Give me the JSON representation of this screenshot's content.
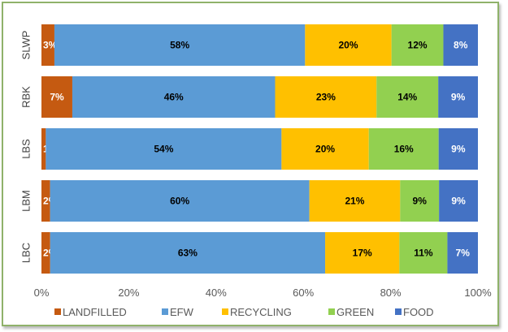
{
  "chart_data": {
    "type": "bar",
    "orientation": "horizontal",
    "stacked": true,
    "percent": true,
    "categories": [
      "SLWP",
      "RBK",
      "LBS",
      "LBM",
      "LBC"
    ],
    "series": [
      {
        "name": "LANDFILLED",
        "color": "#c55a11",
        "label_color": "#ffffff",
        "values": [
          3,
          7,
          1,
          2,
          2
        ]
      },
      {
        "name": "EFW",
        "color": "#5b9bd5",
        "label_color": "#000000",
        "values": [
          58,
          46,
          54,
          60,
          63
        ]
      },
      {
        "name": "RECYCLING",
        "color": "#ffc000",
        "label_color": "#000000",
        "values": [
          20,
          23,
          20,
          21,
          17
        ]
      },
      {
        "name": "GREEN",
        "color": "#92d050",
        "label_color": "#000000",
        "values": [
          12,
          14,
          16,
          9,
          11
        ]
      },
      {
        "name": "FOOD",
        "color": "#4472c4",
        "label_color": "#ffffff",
        "values": [
          8,
          9,
          9,
          9,
          7
        ]
      }
    ],
    "xlim": [
      0,
      100
    ],
    "x_ticks": [
      "0%",
      "20%",
      "40%",
      "60%",
      "80%",
      "100%"
    ],
    "grid": false,
    "legend_position": "bottom",
    "frame_color": "#8fb26a"
  }
}
